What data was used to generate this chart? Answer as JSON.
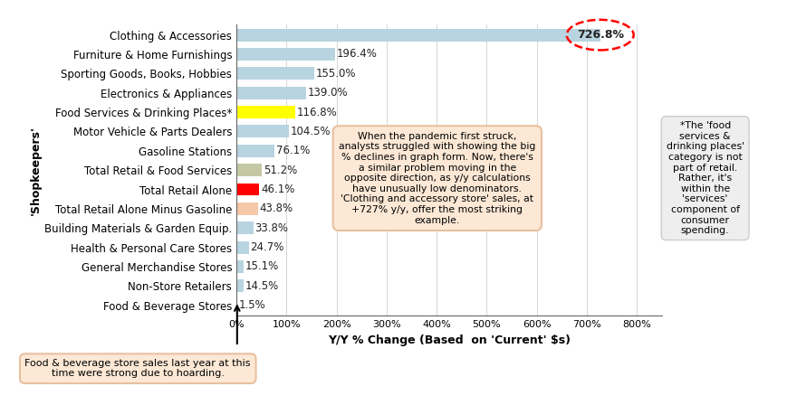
{
  "categories": [
    "Clothing & Accessories",
    "Furniture & Home Furnishings",
    "Sporting Goods, Books, Hobbies",
    "Electronics & Appliances",
    "Food Services & Drinking Places*",
    "Motor Vehicle & Parts Dealers",
    "Gasoline Stations",
    "Total Retail & Food Services",
    "Total Retail Alone",
    "Total Retail Alone Minus Gasoline",
    "Building Materials & Garden Equip.",
    "Health & Personal Care Stores",
    "General Merchandise Stores",
    "Non-Store Retailers",
    "Food & Beverage Stores"
  ],
  "values": [
    726.8,
    196.4,
    155.0,
    139.0,
    116.8,
    104.5,
    76.1,
    51.2,
    46.1,
    43.8,
    33.8,
    24.7,
    15.1,
    14.5,
    1.5
  ],
  "bar_colors": [
    "#b8d4e0",
    "#b8d4e0",
    "#b8d4e0",
    "#b8d4e0",
    "#ffff00",
    "#b8d4e0",
    "#b8d4e0",
    "#c5c8a4",
    "#ff0000",
    "#f5c8a8",
    "#b8d4e0",
    "#b8d4e0",
    "#b8d4e0",
    "#b8d4e0",
    "#b8d4e0"
  ],
  "xlabel": "Y/Y % Change (Based  on 'Current' $s)",
  "ylabel": "'Shopkeepers'",
  "xlim": [
    0,
    850
  ],
  "xticks": [
    0,
    100,
    200,
    300,
    400,
    500,
    600,
    700,
    800
  ],
  "xtick_labels": [
    "0%",
    "100%",
    "200%",
    "300%",
    "400%",
    "500%",
    "600%",
    "700%",
    "800%"
  ],
  "background_color": "#ffffff",
  "bar_height": 0.65,
  "value_labels": [
    "726.8%",
    "196.4%",
    "155.0%",
    "139.0%",
    "116.8%",
    "104.5%",
    "76.1%",
    "51.2%",
    "46.1%",
    "43.8%",
    "33.8%",
    "24.7%",
    "15.1%",
    "14.5%",
    "1.5%"
  ],
  "annotation_main_text": "When the pandemic first struck,\nanalysts struggled with showing the big\n% declines in graph form. Now, there's\na similar problem moving in the\nopposite direction, as y/y calculations\nhave unusually low denominators.\n'Clothing and accessory store' sales, at\n+727% y/y, offer the most striking\nexample.",
  "annotation_footnote_text": "*The 'food\nservices &\ndrinking places'\ncategory is not\npart of retail.\nRather, it's\nwithin the\n'services'\ncomponent of\nconsumer\nspending.",
  "annotation_bottom_text": "Food & beverage store sales last year at this\ntime were strong due to hoarding.",
  "grid_color": "#d0d0d0"
}
